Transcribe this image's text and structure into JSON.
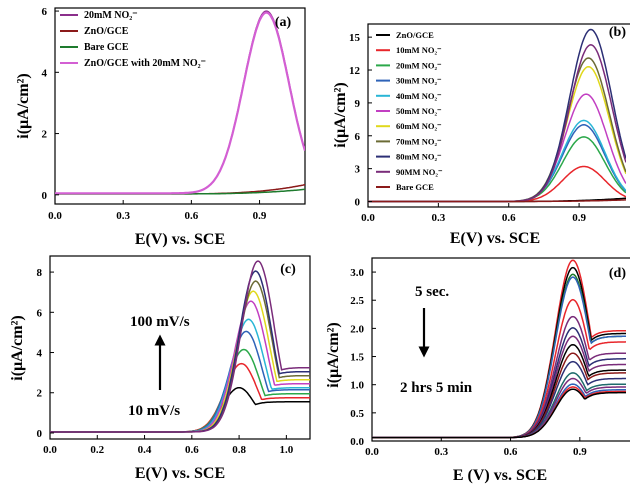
{
  "chart_data": [
    {
      "panel_label": "(a)",
      "type": "line",
      "xlabel": "E(V) vs. SCE",
      "ylabel": "i(μA/cm²)",
      "xlim": [
        0.0,
        1.1
      ],
      "ylim": [
        -0.3,
        6.1
      ],
      "xticks": [
        "0.0",
        "0.3",
        "0.6",
        "0.9"
      ],
      "yticks": [
        "0",
        "2",
        "4",
        "6"
      ],
      "legend_position": "top-left",
      "series": [
        {
          "name": "20mM NO₂⁻",
          "color": "#8b2f8b",
          "peak_x": 0.93,
          "peak_y": 5.95,
          "base": 0.05,
          "sigma": 0.1,
          "tail": 0.0
        },
        {
          "name": "ZnO/GCE",
          "color": "#8b1a1a",
          "peak_x": 1.1,
          "peak_y": 0.0,
          "base": 0.03,
          "sigma": 0.1,
          "tail": 0.3
        },
        {
          "name": "Bare GCE",
          "color": "#1e7b2e",
          "peak_x": 1.1,
          "peak_y": 0.0,
          "base": 0.03,
          "sigma": 0.1,
          "tail": 0.15
        },
        {
          "name": "ZnO/GCE with 20mM NO₂⁻",
          "color": "#d35fd3",
          "peak_x": 0.93,
          "peak_y": 5.9,
          "base": 0.05,
          "sigma": 0.1,
          "tail": 0.0
        }
      ]
    },
    {
      "panel_label": "(b)",
      "type": "line",
      "xlabel": "E(V) vs. SCE",
      "ylabel": "i(μA/cm²)",
      "xlim": [
        0.0,
        1.1
      ],
      "ylim": [
        -0.5,
        16.2
      ],
      "xticks": [
        "0.0",
        "0.3",
        "0.6",
        "0.9"
      ],
      "yticks": [
        "0",
        "3",
        "6",
        "9",
        "12",
        "15"
      ],
      "legend_position": "top-left",
      "series": [
        {
          "name": "ZnO/GCE",
          "color": "#000000",
          "peak_x": 1.1,
          "peak_y": 0.0,
          "base": 0.0,
          "sigma": 0.1,
          "tail": 0.3
        },
        {
          "name": "10mM NO₂⁻",
          "color": "#e8262b",
          "peak_x": 0.92,
          "peak_y": 3.2,
          "base": 0.0,
          "sigma": 0.09,
          "tail": 0.0
        },
        {
          "name": "20mM NO₂⁻",
          "color": "#2ba84a",
          "peak_x": 0.92,
          "peak_y": 5.9,
          "base": 0.0,
          "sigma": 0.09,
          "tail": 0.0
        },
        {
          "name": "30mM NO₂⁻",
          "color": "#2f63b8",
          "peak_x": 0.92,
          "peak_y": 7.0,
          "base": 0.0,
          "sigma": 0.09,
          "tail": 0.0
        },
        {
          "name": "40mM NO₂⁻",
          "color": "#29b6d6",
          "peak_x": 0.92,
          "peak_y": 7.4,
          "base": 0.0,
          "sigma": 0.09,
          "tail": 0.0
        },
        {
          "name": "50mM NO₂⁻",
          "color": "#c23fc2",
          "peak_x": 0.93,
          "peak_y": 9.8,
          "base": 0.0,
          "sigma": 0.09,
          "tail": 0.0
        },
        {
          "name": "60mM NO₂⁻",
          "color": "#e0d81c",
          "peak_x": 0.94,
          "peak_y": 12.3,
          "base": 0.0,
          "sigma": 0.09,
          "tail": 0.0
        },
        {
          "name": "70mM NO₂⁻",
          "color": "#6b6b35",
          "peak_x": 0.94,
          "peak_y": 13.1,
          "base": 0.0,
          "sigma": 0.09,
          "tail": 0.0
        },
        {
          "name": "80mM NO₂⁻",
          "color": "#2c2f75",
          "peak_x": 0.95,
          "peak_y": 15.7,
          "base": 0.0,
          "sigma": 0.09,
          "tail": 0.0
        },
        {
          "name": "90MM NO₂⁻",
          "color": "#7a2c7a",
          "peak_x": 0.95,
          "peak_y": 14.3,
          "base": 0.0,
          "sigma": 0.09,
          "tail": 0.0
        },
        {
          "name": "Bare GCE",
          "color": "#8b1a1a",
          "peak_x": 1.1,
          "peak_y": 0.0,
          "base": 0.0,
          "sigma": 0.1,
          "tail": 0.15
        }
      ]
    },
    {
      "panel_label": "(c)",
      "type": "line",
      "xlabel": "E(V) vs. SCE",
      "ylabel": "i(μA/cm²)",
      "xlim": [
        0.0,
        1.1
      ],
      "ylim": [
        -0.3,
        8.8
      ],
      "xticks": [
        "0.0",
        "0.2",
        "0.4",
        "0.6",
        "0.8",
        "1.0"
      ],
      "yticks": [
        "0",
        "2",
        "4",
        "6",
        "8"
      ],
      "annotations": [
        "100 mV/s",
        "10 mV/s"
      ],
      "series": [
        {
          "color": "#000000",
          "peak_x": 0.8,
          "peak_y": 2.2,
          "base": 0.05,
          "sigma": 0.07,
          "tail": 1.5
        },
        {
          "color": "#e8262b",
          "peak_x": 0.81,
          "peak_y": 3.4,
          "base": 0.05,
          "sigma": 0.07,
          "tail": 1.7
        },
        {
          "color": "#2ba84a",
          "peak_x": 0.82,
          "peak_y": 4.1,
          "base": 0.05,
          "sigma": 0.07,
          "tail": 1.9
        },
        {
          "color": "#2f63b8",
          "peak_x": 0.83,
          "peak_y": 5.0,
          "base": 0.05,
          "sigma": 0.07,
          "tail": 2.1
        },
        {
          "color": "#29b6d6",
          "peak_x": 0.84,
          "peak_y": 5.6,
          "base": 0.05,
          "sigma": 0.07,
          "tail": 2.2
        },
        {
          "color": "#c23fc2",
          "peak_x": 0.85,
          "peak_y": 6.5,
          "base": 0.05,
          "sigma": 0.07,
          "tail": 2.4
        },
        {
          "color": "#e0d81c",
          "peak_x": 0.86,
          "peak_y": 7.0,
          "base": 0.05,
          "sigma": 0.07,
          "tail": 2.6
        },
        {
          "color": "#6b6b35",
          "peak_x": 0.87,
          "peak_y": 7.5,
          "base": 0.05,
          "sigma": 0.07,
          "tail": 2.8
        },
        {
          "color": "#2c2f75",
          "peak_x": 0.87,
          "peak_y": 8.0,
          "base": 0.05,
          "sigma": 0.07,
          "tail": 3.0
        },
        {
          "color": "#7a2c7a",
          "peak_x": 0.88,
          "peak_y": 8.5,
          "base": 0.05,
          "sigma": 0.07,
          "tail": 3.2
        }
      ]
    },
    {
      "panel_label": "(d)",
      "type": "line",
      "xlabel": "E (V) vs. SCE",
      "ylabel": "i(μA/cm²)",
      "xlim": [
        0.0,
        1.1
      ],
      "ylim": [
        0.0,
        3.25
      ],
      "xticks": [
        "0.0",
        "0.3",
        "0.6",
        "0.9"
      ],
      "yticks": [
        "0.0",
        "0.5",
        "1.0",
        "1.5",
        "2.0",
        "2.5",
        "3.0"
      ],
      "annotations": [
        "5 sec.",
        "2 hrs 5 min"
      ],
      "series": [
        {
          "color": "#e8262b",
          "peak_x": 0.87,
          "peak_y": 3.15,
          "base": 0.06,
          "sigma": 0.075,
          "tail": 1.9
        },
        {
          "color": "#000000",
          "peak_x": 0.87,
          "peak_y": 3.02,
          "base": 0.06,
          "sigma": 0.075,
          "tail": 1.85
        },
        {
          "color": "#1e7b2e",
          "peak_x": 0.87,
          "peak_y": 2.9,
          "base": 0.06,
          "sigma": 0.075,
          "tail": 1.8
        },
        {
          "color": "#2f63b8",
          "peak_x": 0.87,
          "peak_y": 2.85,
          "base": 0.06,
          "sigma": 0.075,
          "tail": 1.8
        },
        {
          "color": "#e8262b",
          "peak_x": 0.87,
          "peak_y": 2.45,
          "base": 0.06,
          "sigma": 0.075,
          "tail": 1.7
        },
        {
          "color": "#7a2c7a",
          "peak_x": 0.87,
          "peak_y": 2.15,
          "base": 0.06,
          "sigma": 0.075,
          "tail": 1.5
        },
        {
          "color": "#2c2f75",
          "peak_x": 0.87,
          "peak_y": 1.95,
          "base": 0.06,
          "sigma": 0.075,
          "tail": 1.4
        },
        {
          "color": "#7a2c7a",
          "peak_x": 0.87,
          "peak_y": 1.8,
          "base": 0.06,
          "sigma": 0.075,
          "tail": 1.3
        },
        {
          "color": "#000000",
          "peak_x": 0.87,
          "peak_y": 1.65,
          "base": 0.06,
          "sigma": 0.075,
          "tail": 1.2
        },
        {
          "color": "#8b1a1a",
          "peak_x": 0.87,
          "peak_y": 1.5,
          "base": 0.06,
          "sigma": 0.075,
          "tail": 1.15
        },
        {
          "color": "#2c2f75",
          "peak_x": 0.87,
          "peak_y": 1.35,
          "base": 0.06,
          "sigma": 0.075,
          "tail": 1.05
        },
        {
          "color": "#1e6b6b",
          "peak_x": 0.87,
          "peak_y": 1.15,
          "base": 0.06,
          "sigma": 0.075,
          "tail": 0.95
        },
        {
          "color": "#7a2c7a",
          "peak_x": 0.87,
          "peak_y": 1.05,
          "base": 0.06,
          "sigma": 0.075,
          "tail": 0.9
        },
        {
          "color": "#2f63b8",
          "peak_x": 0.87,
          "peak_y": 0.95,
          "base": 0.06,
          "sigma": 0.075,
          "tail": 0.85
        },
        {
          "color": "#e8262b",
          "peak_x": 0.87,
          "peak_y": 0.9,
          "base": 0.06,
          "sigma": 0.075,
          "tail": 0.82
        },
        {
          "color": "#000000",
          "peak_x": 0.87,
          "peak_y": 0.86,
          "base": 0.06,
          "sigma": 0.075,
          "tail": 0.8
        }
      ]
    }
  ]
}
